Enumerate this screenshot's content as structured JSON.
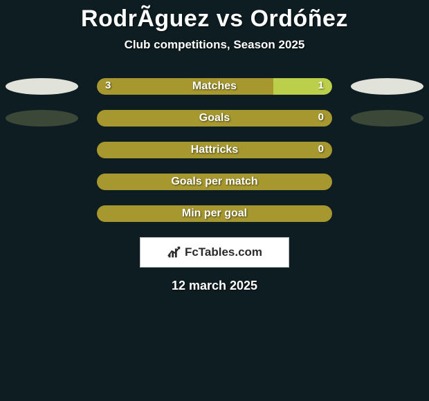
{
  "title": {
    "player1": "RodrÃguez",
    "vs": "vs",
    "player2": "Ordóñez"
  },
  "subtitle": "Club competitions, Season 2025",
  "palette": {
    "bg": "#0e1d21",
    "bar_green_dark": "#a6982f",
    "bar_green_light": "#bccf4b",
    "ellipse_light": "#e1e2da",
    "ellipse_dark": "#3b4838"
  },
  "stats": [
    {
      "label": "Matches",
      "left_value": "3",
      "right_value": "1",
      "left_pct": 75,
      "right_pct": 25,
      "left_color": "#a6982f",
      "right_color": "#bccf4b",
      "ellipse_left_color": "#e1e2da",
      "ellipse_right_color": "#e1e2da",
      "show_left_ellipse": true,
      "show_right_ellipse": true
    },
    {
      "label": "Goals",
      "left_value": "",
      "right_value": "0",
      "left_pct": 0,
      "right_pct": 100,
      "left_color": "#a6982f",
      "right_color": "#a6982f",
      "ellipse_left_color": "#3b4838",
      "ellipse_right_color": "#3b4838",
      "show_left_ellipse": true,
      "show_right_ellipse": true
    },
    {
      "label": "Hattricks",
      "left_value": "",
      "right_value": "0",
      "left_pct": 0,
      "right_pct": 100,
      "left_color": "#a6982f",
      "right_color": "#a6982f",
      "ellipse_left_color": "",
      "ellipse_right_color": "",
      "show_left_ellipse": false,
      "show_right_ellipse": false
    },
    {
      "label": "Goals per match",
      "left_value": "",
      "right_value": "",
      "left_pct": 0,
      "right_pct": 100,
      "left_color": "#a6982f",
      "right_color": "#a6982f",
      "ellipse_left_color": "",
      "ellipse_right_color": "",
      "show_left_ellipse": false,
      "show_right_ellipse": false
    },
    {
      "label": "Min per goal",
      "left_value": "",
      "right_value": "",
      "left_pct": 0,
      "right_pct": 100,
      "left_color": "#a6982f",
      "right_color": "#a6982f",
      "ellipse_left_color": "",
      "ellipse_right_color": "",
      "show_left_ellipse": false,
      "show_right_ellipse": false
    }
  ],
  "badge": {
    "text": "FcTables.com"
  },
  "date": "12 march 2025"
}
